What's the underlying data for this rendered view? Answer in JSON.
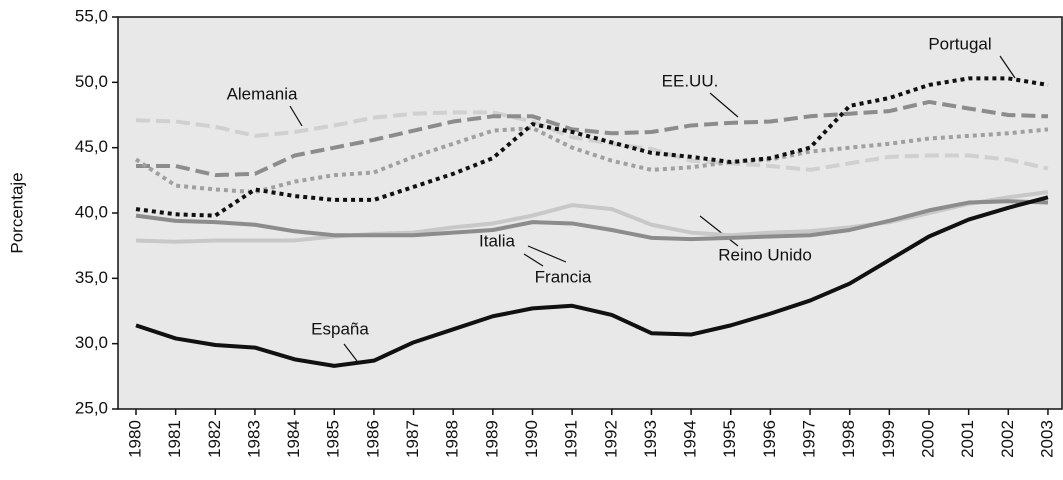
{
  "chart_data": {
    "type": "line",
    "y_label": "Porcentaje",
    "categories": [
      "1980",
      "1981",
      "1982",
      "1983",
      "1984",
      "1985",
      "1986",
      "1987",
      "1988",
      "1989",
      "1990",
      "1991",
      "1992",
      "1993",
      "1994",
      "1995",
      "1996",
      "1997",
      "1998",
      "1999",
      "2000",
      "2001",
      "2002",
      "2003"
    ],
    "ylim": [
      25,
      55
    ],
    "yticks": [
      {
        "value": 25,
        "label": "25,0"
      },
      {
        "value": 30,
        "label": "30,0"
      },
      {
        "value": 35,
        "label": "35,0"
      },
      {
        "value": 40,
        "label": "40,0"
      },
      {
        "value": 45,
        "label": "45,0"
      },
      {
        "value": 50,
        "label": "50,0"
      },
      {
        "value": 55,
        "label": "55,0"
      }
    ],
    "series": [
      {
        "name": "Alemania",
        "color": "#d0d0d0",
        "style": "dashed",
        "values": [
          47.1,
          47.0,
          46.6,
          45.9,
          46.2,
          46.7,
          47.3,
          47.6,
          47.7,
          47.7,
          47.0,
          45.8,
          45.3,
          44.9,
          44.0,
          43.8,
          43.6,
          43.3,
          43.8,
          44.3,
          44.4,
          44.4,
          44.1,
          43.4
        ]
      },
      {
        "name": "EE.UU.",
        "color": "#8c8c8c",
        "style": "dashed",
        "values": [
          43.6,
          43.6,
          42.9,
          43.0,
          44.4,
          45.0,
          45.6,
          46.3,
          47.0,
          47.4,
          47.4,
          46.4,
          46.1,
          46.2,
          46.7,
          46.9,
          47.0,
          47.4,
          47.6,
          47.8,
          48.5,
          48.0,
          47.5,
          47.4
        ]
      },
      {
        "name": "Reino Unido",
        "color": "#a0a0a0",
        "style": "dotted",
        "values": [
          44.1,
          42.1,
          41.8,
          41.6,
          42.4,
          42.9,
          43.1,
          44.3,
          45.3,
          46.3,
          46.5,
          45.0,
          44.0,
          43.3,
          43.5,
          43.9,
          44.1,
          44.7,
          45.0,
          45.3,
          45.7,
          45.9,
          46.1,
          46.4
        ]
      },
      {
        "name": "Portugal",
        "color": "#111111",
        "style": "dotted",
        "values": [
          40.3,
          39.9,
          39.8,
          41.8,
          41.3,
          41.0,
          41.0,
          42.0,
          43.0,
          44.2,
          46.8,
          46.2,
          45.4,
          44.6,
          44.3,
          43.9,
          44.2,
          45.0,
          48.2,
          48.8,
          49.8,
          50.3,
          50.3,
          49.8
        ]
      },
      {
        "name": "Italia",
        "color": "#c8c8c8",
        "style": "solid",
        "values": [
          37.9,
          37.8,
          37.9,
          37.9,
          37.9,
          38.2,
          38.4,
          38.5,
          38.9,
          39.2,
          39.8,
          40.6,
          40.3,
          39.1,
          38.5,
          38.3,
          38.5,
          38.6,
          38.9,
          39.3,
          40.0,
          40.7,
          41.2,
          41.6
        ]
      },
      {
        "name": "Francia",
        "color": "#8c8c8c",
        "style": "solid",
        "values": [
          39.8,
          39.4,
          39.3,
          39.1,
          38.6,
          38.3,
          38.3,
          38.3,
          38.5,
          38.7,
          39.3,
          39.2,
          38.7,
          38.1,
          38.0,
          38.1,
          38.2,
          38.3,
          38.7,
          39.4,
          40.2,
          40.8,
          40.9,
          40.8
        ]
      },
      {
        "name": "España",
        "color": "#111111",
        "style": "solid",
        "values": [
          31.4,
          30.4,
          29.9,
          29.7,
          28.8,
          28.3,
          28.7,
          30.1,
          31.1,
          32.1,
          32.7,
          32.9,
          32.2,
          30.8,
          30.7,
          31.4,
          32.3,
          33.3,
          34.6,
          36.4,
          38.2,
          39.5,
          40.4,
          41.2
        ]
      }
    ]
  }
}
